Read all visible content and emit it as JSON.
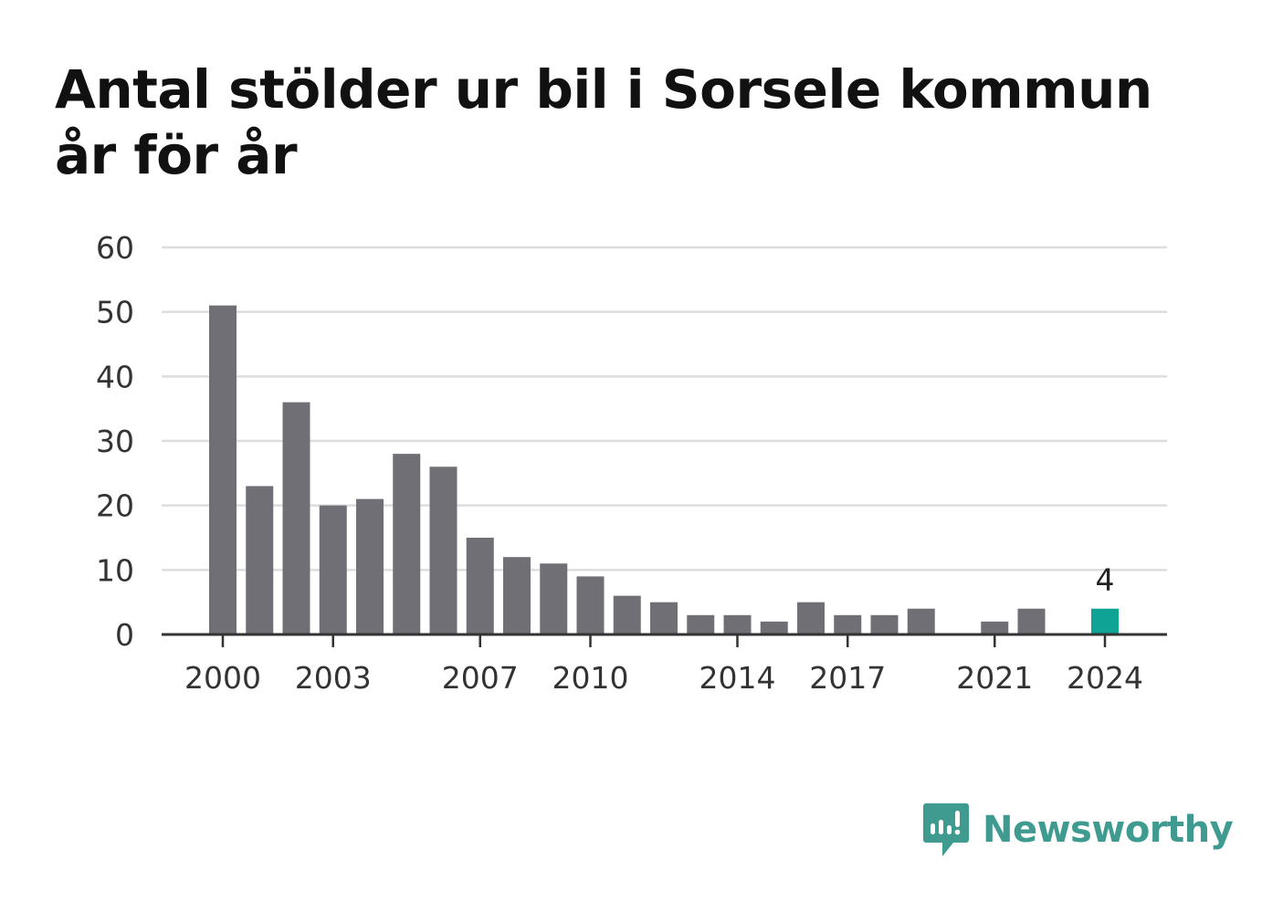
{
  "chart_data": {
    "type": "bar",
    "title": "Antal stölder ur bil i Sorsele kommun år för år",
    "categories": [
      "2000",
      "2001",
      "2002",
      "2003",
      "2004",
      "2005",
      "2006",
      "2007",
      "2008",
      "2009",
      "2010",
      "2011",
      "2012",
      "2013",
      "2014",
      "2015",
      "2016",
      "2017",
      "2018",
      "2019",
      "2020",
      "2021",
      "2022",
      "2023",
      "2024"
    ],
    "values": [
      51,
      23,
      36,
      20,
      21,
      28,
      26,
      15,
      12,
      11,
      9,
      6,
      5,
      3,
      3,
      2,
      5,
      3,
      3,
      4,
      0,
      2,
      4,
      0,
      4
    ],
    "x_tick_labels": [
      "2000",
      "2003",
      "2007",
      "2010",
      "2014",
      "2017",
      "2021",
      "2024"
    ],
    "y_ticks": [
      0,
      10,
      20,
      30,
      40,
      50,
      60
    ],
    "ylim": [
      0,
      60
    ],
    "grid": true,
    "highlight": {
      "category": "2024",
      "label": "4"
    },
    "colors": {
      "bar": "#6f6f75",
      "highlight": "#0fa396",
      "grid": "#dddddd",
      "axis": "#333333"
    }
  },
  "brand": {
    "name": "Newsworthy",
    "icon": "newsworthy-logo-icon",
    "color": "#3f9a90"
  }
}
